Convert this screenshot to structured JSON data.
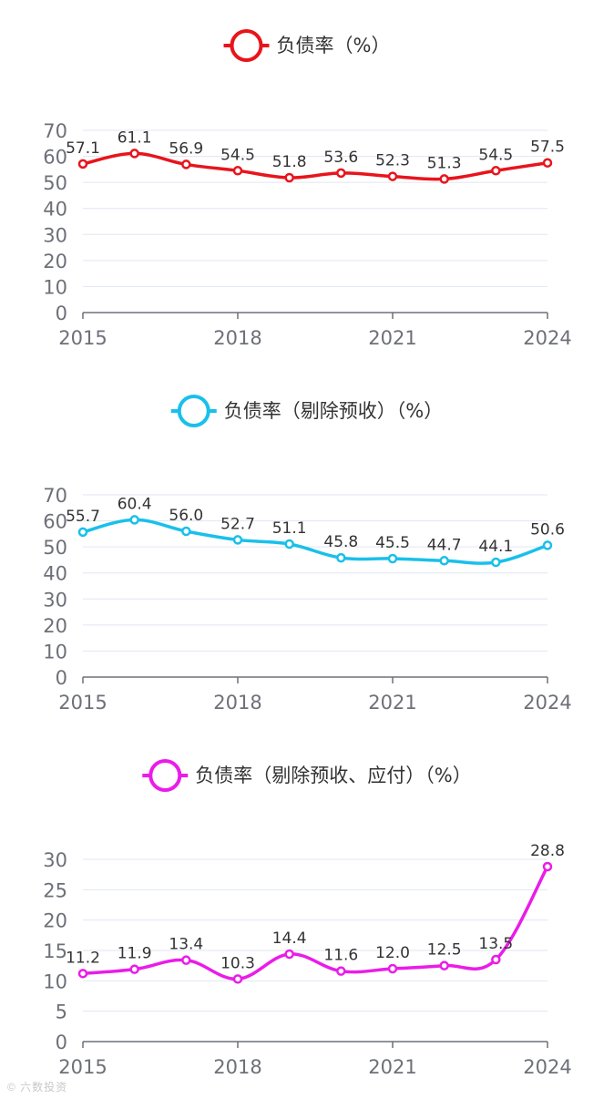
{
  "chart_data": [
    {
      "type": "line",
      "title": "负债率（%）",
      "color": "#e8141c",
      "x": [
        "2015",
        "2016",
        "2017",
        "2018",
        "2019",
        "2020",
        "2021",
        "2022",
        "2023",
        "2024"
      ],
      "values": [
        57.1,
        61.1,
        56.9,
        54.5,
        51.8,
        53.6,
        52.3,
        51.3,
        54.5,
        57.5
      ],
      "value_labels": [
        "57.1",
        "61.1",
        "56.9",
        "54.5",
        "51.8",
        "53.6",
        "52.3",
        "51.3",
        "54.5",
        "57.5"
      ],
      "xtick_labels": [
        "2015",
        "2018",
        "2021",
        "2024"
      ],
      "yticks": [
        0,
        10,
        20,
        30,
        40,
        50,
        60,
        70
      ],
      "ylim": [
        0,
        70
      ],
      "legend": "top-center",
      "grid": true,
      "smooth": true
    },
    {
      "type": "line",
      "title": "负债率（剔除预收）（%）",
      "color": "#19c0ea",
      "x": [
        "2015",
        "2016",
        "2017",
        "2018",
        "2019",
        "2020",
        "2021",
        "2022",
        "2023",
        "2024"
      ],
      "values": [
        55.7,
        60.4,
        56.0,
        52.7,
        51.1,
        45.8,
        45.5,
        44.7,
        44.1,
        50.6
      ],
      "value_labels": [
        "55.7",
        "60.4",
        "56.0",
        "52.7",
        "51.1",
        "45.8",
        "45.5",
        "44.7",
        "44.1",
        "50.6"
      ],
      "xtick_labels": [
        "2015",
        "2018",
        "2021",
        "2024"
      ],
      "yticks": [
        0,
        10,
        20,
        30,
        40,
        50,
        60,
        70
      ],
      "ylim": [
        0,
        70
      ],
      "legend": "top-center",
      "grid": true,
      "smooth": true
    },
    {
      "type": "line",
      "title": "负债率（剔除预收、应付）（%）",
      "color": "#ea1ce8",
      "x": [
        "2015",
        "2016",
        "2017",
        "2018",
        "2019",
        "2020",
        "2021",
        "2022",
        "2023",
        "2024"
      ],
      "values": [
        11.2,
        11.9,
        13.4,
        10.3,
        14.4,
        11.6,
        12.0,
        12.5,
        13.5,
        28.8
      ],
      "value_labels": [
        "11.2",
        "11.9",
        "13.4",
        "10.3",
        "14.4",
        "11.6",
        "12.0",
        "12.5",
        "13.5",
        "28.8"
      ],
      "xtick_labels": [
        "2015",
        "2018",
        "2021",
        "2024"
      ],
      "yticks": [
        0,
        5,
        10,
        15,
        20,
        25,
        30
      ],
      "ylim": [
        0,
        30
      ],
      "legend": "top-center",
      "grid": true,
      "smooth": true
    }
  ],
  "watermark": "© 六数投资"
}
